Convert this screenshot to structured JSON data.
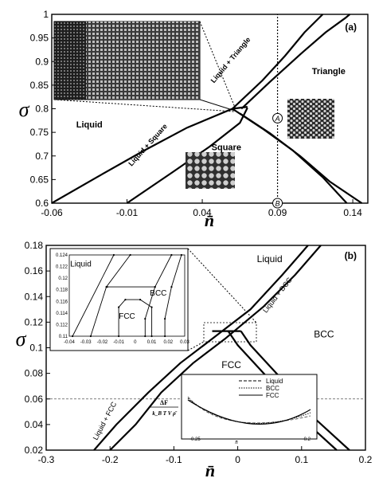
{
  "chart_data": [
    {
      "type": "line",
      "panel_label": "(a)",
      "xlabel": "n̄",
      "ylabel": "σ",
      "xlim": [
        -0.06,
        0.15
      ],
      "ylim": [
        0.6,
        1.0
      ],
      "x_ticks": [
        "-0.06",
        "-0.01",
        "0.04",
        "0.09",
        "0.14"
      ],
      "x_tick_values": [
        -0.06,
        -0.01,
        0.04,
        0.09,
        0.14
      ],
      "y_ticks": [
        "0.6",
        "0.65",
        "0.7",
        "0.75",
        "0.8",
        "0.85",
        "0.9",
        "0.95",
        "1"
      ],
      "y_tick_values": [
        0.6,
        0.65,
        0.7,
        0.75,
        0.8,
        0.85,
        0.9,
        0.95,
        1.0
      ],
      "regions": [
        {
          "label": "Liquid",
          "x": -0.035,
          "y": 0.76
        },
        {
          "label": "Liquid + Square",
          "x": 0.005,
          "y": 0.72,
          "rotate": -48
        },
        {
          "label": "Liquid + Triangle",
          "x": 0.06,
          "y": 0.9,
          "rotate": -50
        },
        {
          "label": "Triangle",
          "x": 0.124,
          "y": 0.873
        },
        {
          "label": "Square",
          "x": 0.056,
          "y": 0.712
        }
      ],
      "boundaries": [
        {
          "x": [
            -0.06,
            -0.03,
            0.0,
            0.03,
            0.06,
            0.07
          ],
          "y": [
            0.6,
            0.655,
            0.709,
            0.76,
            0.8,
            0.804
          ]
        },
        {
          "x": [
            -0.01,
            0.02,
            0.045,
            0.065,
            0.07
          ],
          "y": [
            0.6,
            0.665,
            0.72,
            0.77,
            0.802
          ]
        },
        {
          "x": [
            0.06,
            0.08,
            0.095,
            0.108,
            0.12
          ],
          "y": [
            0.8,
            0.86,
            0.912,
            0.962,
            1.0
          ]
        },
        {
          "x": [
            0.066,
            0.085,
            0.105,
            0.122,
            0.135,
            0.138
          ],
          "y": [
            0.8,
            0.857,
            0.915,
            0.962,
            0.992,
            1.0
          ]
        },
        {
          "x": [
            0.06,
            0.08,
            0.1,
            0.12,
            0.136
          ],
          "y": [
            0.8,
            0.758,
            0.712,
            0.655,
            0.6
          ]
        },
        {
          "x": [
            0.065,
            0.085,
            0.105,
            0.125,
            0.146
          ],
          "y": [
            0.79,
            0.748,
            0.7,
            0.645,
            0.6
          ]
        }
      ],
      "vertical_path": {
        "x": 0.09,
        "y": [
          0.6,
          1.0
        ]
      },
      "markers": [
        {
          "label": "A",
          "x": 0.09,
          "y": 0.78
        },
        {
          "label": "B",
          "x": 0.09,
          "y": 0.6
        }
      ]
    },
    {
      "type": "line",
      "panel_label": "(b)",
      "xlabel": "n̄",
      "ylabel": "σ",
      "xlim": [
        -0.3,
        0.2
      ],
      "ylim": [
        0.02,
        0.18
      ],
      "x_ticks": [
        "-0.3",
        "-0.2",
        "-0.1",
        "0",
        "0.1",
        "0.2"
      ],
      "x_tick_values": [
        -0.3,
        -0.2,
        -0.1,
        0,
        0.1,
        0.2
      ],
      "y_ticks": [
        "0.02",
        "0.04",
        "0.06",
        "0.08",
        "0.1",
        "0.12",
        "0.14",
        "0.16",
        "0.18"
      ],
      "y_tick_values": [
        0.02,
        0.04,
        0.06,
        0.08,
        0.1,
        0.12,
        0.14,
        0.16,
        0.18
      ],
      "regions": [
        {
          "label": "Liquid",
          "x": 0.05,
          "y": 0.167
        },
        {
          "label": "BCC",
          "x": 0.135,
          "y": 0.108
        },
        {
          "label": "FCC",
          "x": -0.01,
          "y": 0.084
        },
        {
          "label": "Liquid + BCC",
          "x": 0.065,
          "y": 0.14,
          "rotate": -52
        },
        {
          "label": "Liquid + FCC",
          "x": -0.205,
          "y": 0.042,
          "rotate": -62
        }
      ],
      "boundaries": [
        {
          "x": [
            -0.225,
            -0.19,
            -0.14,
            -0.09,
            -0.04,
            0.02,
            0.07,
            0.11
          ],
          "y": [
            0.02,
            0.04,
            0.065,
            0.088,
            0.107,
            0.13,
            0.157,
            0.18
          ]
        },
        {
          "x": [
            -0.2,
            -0.16,
            -0.12,
            -0.07,
            -0.02,
            0.04,
            0.09,
            0.13
          ],
          "y": [
            0.02,
            0.04,
            0.065,
            0.088,
            0.107,
            0.132,
            0.157,
            0.18
          ]
        },
        {
          "x": [
            -0.015,
            0.0,
            0.05,
            0.1,
            0.155
          ],
          "y": [
            0.113,
            0.102,
            0.075,
            0.045,
            0.02
          ]
        },
        {
          "x": [
            0.005,
            0.02,
            0.07,
            0.12,
            0.175
          ],
          "y": [
            0.113,
            0.102,
            0.075,
            0.045,
            0.02
          ]
        }
      ],
      "triple_line": {
        "x": [
          -0.04,
          0.005
        ],
        "y": 0.113
      },
      "hline": {
        "y": 0.06
      },
      "inset_diagram": {
        "regions": [
          "Liquid",
          "BCC",
          "FCC"
        ],
        "x_ticks": [
          "-0.04",
          "-0.03",
          "-0.02",
          "-0.01",
          "0",
          "0.01",
          "0.02",
          "0.03"
        ],
        "y_ticks": [
          "0.11",
          "0.112",
          "0.114",
          "0.116",
          "0.118",
          "0.12",
          "0.122",
          "0.124"
        ],
        "xlim": [
          -0.04,
          0.03
        ],
        "ylim": [
          0.11,
          0.124
        ]
      },
      "inset_energy": {
        "ylabel_num": "ΔF",
        "ylabel_den": "k_B T V ρ̄",
        "xlabel": "n̄",
        "x_ticks": [
          "-0.25",
          "-0.2"
        ],
        "legend": [
          "Liquid",
          "BCC",
          "FCC"
        ],
        "legend_styles": [
          "dashed",
          "dotted",
          "solid"
        ]
      }
    }
  ]
}
